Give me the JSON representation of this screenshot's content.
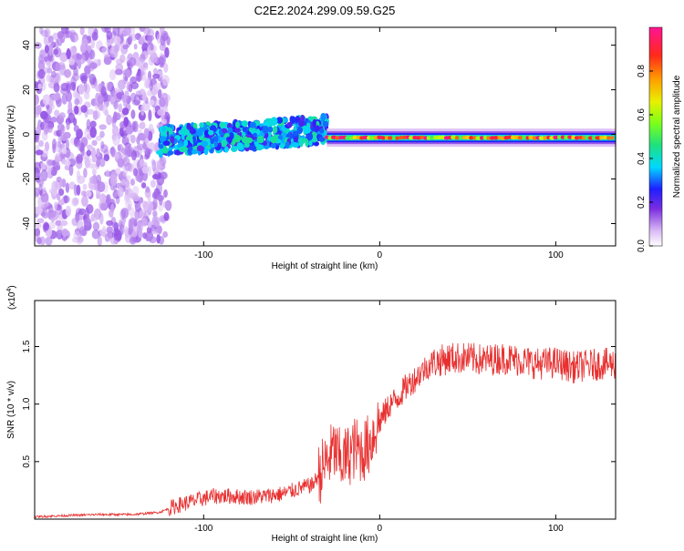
{
  "title": "C2E2.2024.299.09.59.G25",
  "colors": {
    "snr_line": "#e83030",
    "axis": "#000000"
  },
  "chart_data": [
    {
      "type": "heatmap",
      "xlabel": "Height of straight line (km)",
      "ylabel": "Frequency (Hz)",
      "xlim": [
        -196,
        134
      ],
      "ylim": [
        -50,
        48
      ],
      "x_ticks": [
        -100,
        0,
        100
      ],
      "y_ticks": [
        -40,
        -20,
        0,
        20,
        40
      ],
      "colorbar": {
        "label": "Normalized spectral amplitude",
        "range": [
          0,
          1
        ],
        "ticks": [
          "0.0",
          "0.2",
          "0.4",
          "0.6",
          "0.8"
        ],
        "tick_values": [
          0.0,
          0.2,
          0.4,
          0.6,
          0.8
        ]
      },
      "regions": [
        {
          "x_range": [
            -196,
            -120
          ],
          "freq_spread": 48,
          "amplitude": [
            0.05,
            0.15
          ]
        },
        {
          "x_range": [
            -125,
            -30
          ],
          "freq_center_start": -3,
          "freq_center_end": 2,
          "freq_spread": 6,
          "amplitude": [
            0.2,
            0.45
          ]
        },
        {
          "x_range": [
            -30,
            134
          ],
          "freq_center": -1.5,
          "freq_spread": 1.5,
          "amplitude": [
            0.35,
            1.0
          ]
        }
      ]
    },
    {
      "type": "line",
      "xlabel": "Height of straight line (km)",
      "ylabel": "SNR (10 * v/v)",
      "y_scale_label": "(x10^4)",
      "xlim": [
        -196,
        134
      ],
      "ylim": [
        0,
        1.9
      ],
      "x_ticks": [
        -100,
        0,
        100
      ],
      "y_ticks": [
        "0.5",
        "1.0",
        "1.5"
      ],
      "y_tick_values": [
        0.5,
        1.0,
        1.5
      ],
      "series": [
        {
          "x": [
            -196,
            -180,
            -160,
            -140,
            -125,
            -115,
            -105,
            -95,
            -85,
            -75,
            -65,
            -55,
            -45,
            -38,
            -32,
            -26,
            -22,
            -18,
            -14,
            -10,
            -6,
            -2,
            2,
            6,
            10,
            15,
            20,
            25,
            30,
            35,
            40,
            50,
            60,
            70,
            80,
            90,
            100,
            110,
            120,
            128,
            134
          ],
          "y": [
            0.02,
            0.03,
            0.04,
            0.04,
            0.06,
            0.12,
            0.16,
            0.2,
            0.2,
            0.19,
            0.2,
            0.22,
            0.27,
            0.3,
            0.45,
            0.6,
            0.5,
            0.55,
            0.62,
            0.58,
            0.65,
            0.8,
            0.9,
            1.0,
            1.05,
            1.15,
            1.22,
            1.3,
            1.36,
            1.38,
            1.4,
            1.4,
            1.38,
            1.4,
            1.38,
            1.35,
            1.36,
            1.32,
            1.34,
            1.35,
            1.35
          ]
        }
      ]
    }
  ]
}
